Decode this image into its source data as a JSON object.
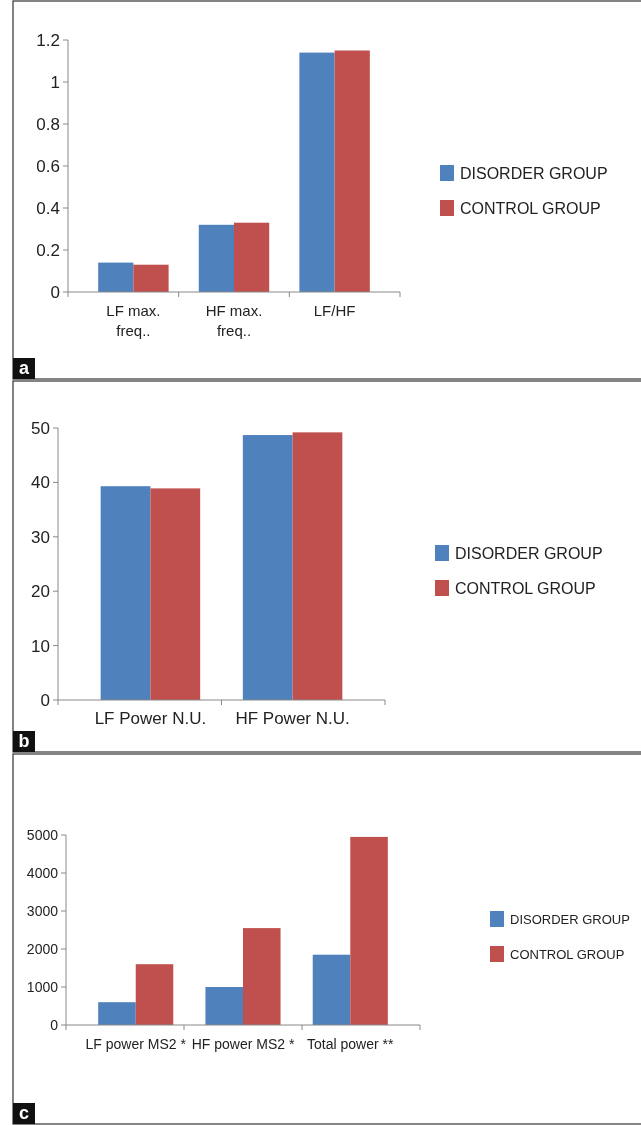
{
  "chart_data": [
    {
      "type": "bar",
      "categories": [
        "LF max. freq..",
        "HF max. freq..",
        "LF/HF"
      ],
      "series": [
        {
          "name": "DISORDER GROUP",
          "color": "#4f81bd",
          "values": [
            0.14,
            0.32,
            1.14
          ]
        },
        {
          "name": "CONTROL GROUP",
          "color": "#c0504d",
          "values": [
            0.13,
            0.33,
            1.15
          ]
        }
      ],
      "ylim": [
        0,
        1.2
      ],
      "yticks": [
        0,
        {
          "value": 0.2,
          "label": "0.2"
        },
        {
          "value": 0.4,
          "label": "0.4"
        },
        {
          "value": 0.6,
          "label": "0.6"
        },
        {
          "value": 0.8,
          "label": "0.8"
        },
        1,
        {
          "value": 1.2,
          "label": "1.2"
        }
      ],
      "grid": false,
      "legend": "right",
      "annotations": [
        "a"
      ]
    },
    {
      "type": "bar",
      "categories": [
        "LF Power N.U.",
        "HF Power N.U."
      ],
      "series": [
        {
          "name": "DISORDER GROUP",
          "color": "#4f81bd",
          "values": [
            39.3,
            48.7
          ]
        },
        {
          "name": "CONTROL GROUP",
          "color": "#c0504d",
          "values": [
            38.9,
            49.2
          ]
        }
      ],
      "ylim": [
        0,
        50
      ],
      "yticks": [
        0,
        10,
        20,
        30,
        40,
        50
      ],
      "grid": false,
      "legend": "right",
      "annotations": [
        "b"
      ]
    },
    {
      "type": "bar",
      "categories": [
        "LF power MS2 *",
        "HF power MS2 *",
        "Total power **"
      ],
      "series": [
        {
          "name": "DISORDER GROUP",
          "color": "#4f81bd",
          "values": [
            600,
            1000,
            1850
          ]
        },
        {
          "name": "CONTROL GROUP",
          "color": "#c0504d",
          "values": [
            1600,
            2550,
            4950
          ]
        }
      ],
      "ylim": [
        0,
        5000
      ],
      "yticks": [
        0,
        1000,
        2000,
        3000,
        4000,
        5000
      ],
      "grid": false,
      "legend": "right",
      "annotations": [
        "c"
      ]
    }
  ]
}
